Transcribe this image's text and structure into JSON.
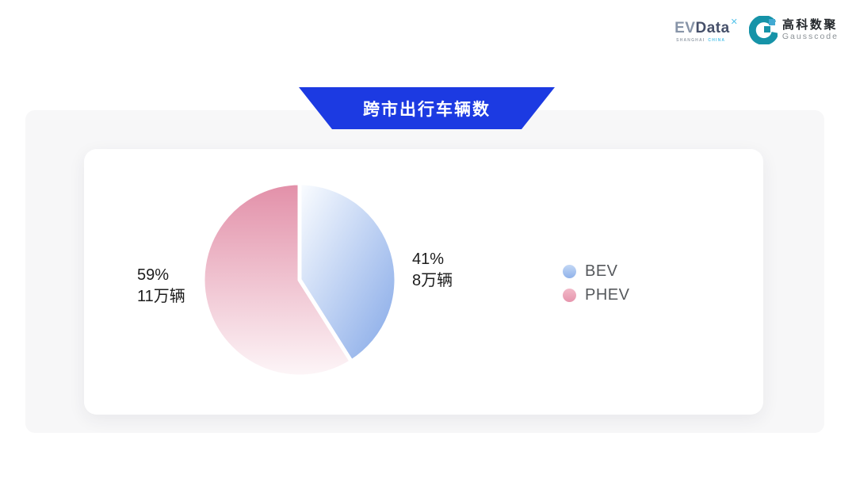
{
  "header": {
    "evdata_logo": {
      "ev": "EV",
      "data": "Data",
      "mark": "✕",
      "sub_left": "SHANGHAI",
      "sub_right": "CHINA",
      "mark_color": "#55c3ea"
    },
    "gausscode_logo": {
      "cn": "高科数聚",
      "en": "Gausscode",
      "icon_color": "#1693a8",
      "icon_accent": "#41a9d2"
    }
  },
  "banner": {
    "title": "跨市出行车辆数",
    "bg_color": "#1c3ae2",
    "text_color": "#ffffff"
  },
  "chart_data": {
    "type": "pie",
    "title": "跨市出行车辆数",
    "unit": "万辆",
    "start_angle_deg": 0,
    "direction": "clockwise",
    "legend_position": "right",
    "series": [
      {
        "name": "BEV",
        "value": 8,
        "percent": 41,
        "percent_label": "41%",
        "amount_label": "8万辆",
        "gradient": {
          "from": "#fbfdff",
          "to": "#83a7e7",
          "direction": "diagonal"
        },
        "swatch": {
          "from": "#c3d7f5",
          "to": "#8fb2ea"
        }
      },
      {
        "name": "PHEV",
        "value": 11,
        "percent": 59,
        "percent_label": "59%",
        "amount_label": "11万辆",
        "gradient": {
          "from": "#e28fa8",
          "to": "#fdf6f8",
          "direction": "vertical"
        },
        "swatch": {
          "from": "#f2b9c8",
          "to": "#e695ad"
        }
      }
    ]
  }
}
